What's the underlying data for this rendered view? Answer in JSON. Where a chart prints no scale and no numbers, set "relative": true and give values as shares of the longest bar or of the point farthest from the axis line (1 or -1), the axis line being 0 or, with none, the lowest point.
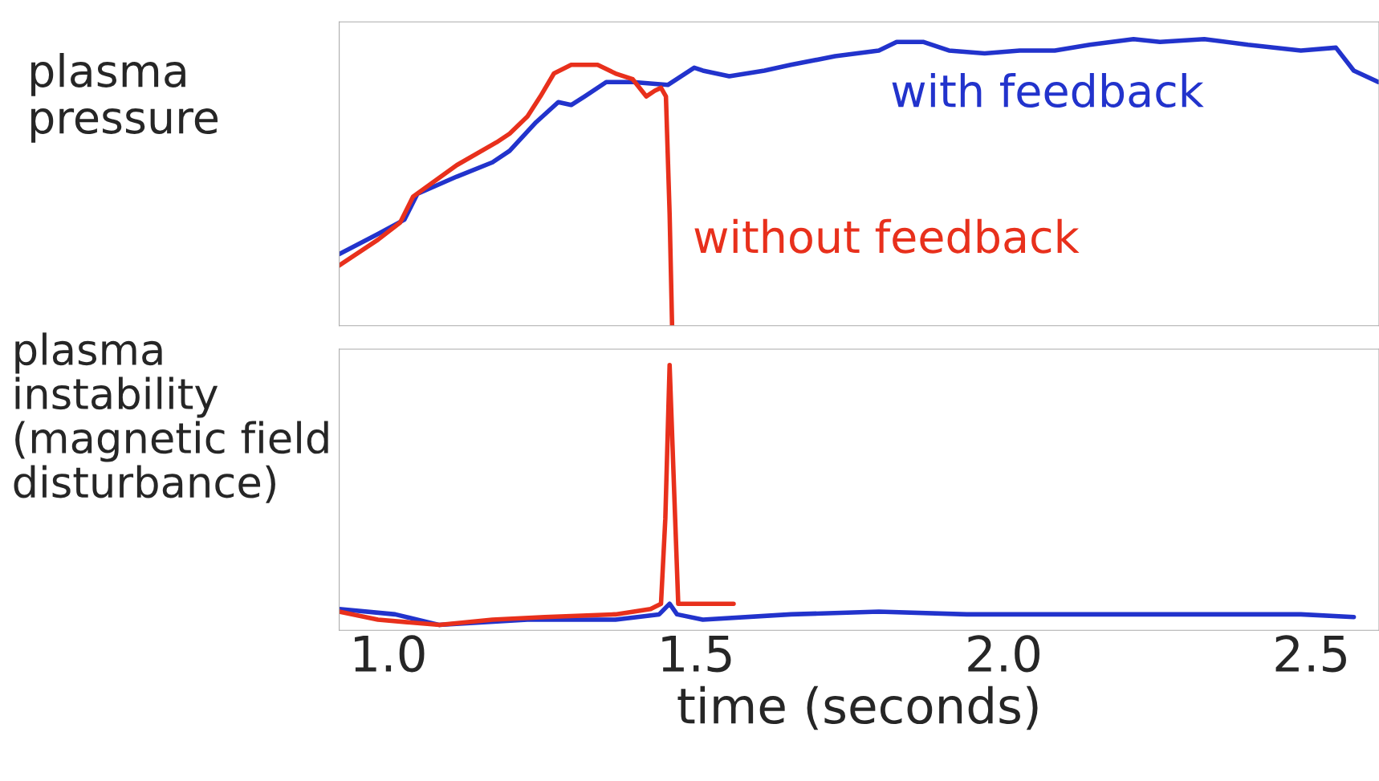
{
  "chart_data": [
    {
      "type": "line",
      "relative": true,
      "ylabel": "plasma\npressure",
      "xlim": [
        0.92,
        2.61
      ],
      "xticks": [
        {
          "value": 1.0,
          "label": null
        },
        {
          "value": 1.5,
          "label": null
        },
        {
          "value": 2.0,
          "label": null
        },
        {
          "value": 2.5,
          "label": null
        }
      ],
      "tick_labels": false,
      "grid": false,
      "legend": false,
      "series": [
        {
          "name": "with feedback",
          "color": "#2233cc",
          "x": [
            0.92,
            0.983,
            1.026,
            1.047,
            1.111,
            1.169,
            1.197,
            1.24,
            1.276,
            1.297,
            1.319,
            1.354,
            1.397,
            1.454,
            1.497,
            1.511,
            1.554,
            1.611,
            1.654,
            1.726,
            1.797,
            1.826,
            1.869,
            1.911,
            1.969,
            2.026,
            2.083,
            2.14,
            2.211,
            2.254,
            2.326,
            2.397,
            2.483,
            2.54,
            2.569,
            2.609
          ],
          "values": [
            0.25,
            0.32,
            0.37,
            0.46,
            0.52,
            0.57,
            0.61,
            0.71,
            0.78,
            0.77,
            0.8,
            0.85,
            0.85,
            0.84,
            0.9,
            0.89,
            0.87,
            0.89,
            0.91,
            0.94,
            0.96,
            0.99,
            0.99,
            0.96,
            0.95,
            0.96,
            0.96,
            0.98,
            1.0,
            0.99,
            1.0,
            0.98,
            0.96,
            0.97,
            0.89,
            0.85
          ]
        },
        {
          "name": "without feedback",
          "color": "#e8301c",
          "x": [
            0.92,
            0.983,
            1.019,
            1.04,
            1.111,
            1.176,
            1.197,
            1.226,
            1.247,
            1.269,
            1.297,
            1.34,
            1.369,
            1.397,
            1.419,
            1.433,
            1.443,
            1.451,
            1.457,
            1.461
          ],
          "values": [
            0.21,
            0.3,
            0.36,
            0.45,
            0.56,
            0.64,
            0.67,
            0.73,
            0.8,
            0.88,
            0.91,
            0.91,
            0.88,
            0.86,
            0.8,
            0.82,
            0.83,
            0.8,
            0.39,
            0
          ]
        }
      ]
    },
    {
      "type": "line",
      "relative": true,
      "ylabel": "plasma\ninstability\n(magnetic field\ndisturbance)",
      "xlabel": "time (seconds)",
      "xlim": [
        0.92,
        2.61
      ],
      "xticks": [
        {
          "value": 1.0,
          "label": "1.0"
        },
        {
          "value": 1.5,
          "label": "1.5"
        },
        {
          "value": 2.0,
          "label": "2.0"
        },
        {
          "value": 2.5,
          "label": "2.5"
        }
      ],
      "tick_labels": "x",
      "grid": false,
      "legend": false,
      "series": [
        {
          "color": "#2233cc",
          "x": [
            0.92,
            1.011,
            1.083,
            1.226,
            1.369,
            1.44,
            1.457,
            1.469,
            1.511,
            1.654,
            1.797,
            1.94,
            2.083,
            2.226,
            2.369,
            2.483,
            2.569
          ],
          "values": [
            0.08,
            0.06,
            0.02,
            0.04,
            0.04,
            0.06,
            0.1,
            0.06,
            0.04,
            0.06,
            0.07,
            0.06,
            0.06,
            0.06,
            0.06,
            0.06,
            0.05
          ]
        },
        {
          "color": "#e8301c",
          "x": [
            0.92,
            0.983,
            1.083,
            1.169,
            1.254,
            1.369,
            1.426,
            1.443,
            1.45,
            1.457,
            1.466,
            1.471,
            1.511,
            1.561
          ],
          "values": [
            0.07,
            0.04,
            0.02,
            0.04,
            0.05,
            0.06,
            0.08,
            0.1,
            0.42,
            1.0,
            0.42,
            0.1,
            0.1,
            0.1
          ]
        }
      ]
    }
  ]
}
